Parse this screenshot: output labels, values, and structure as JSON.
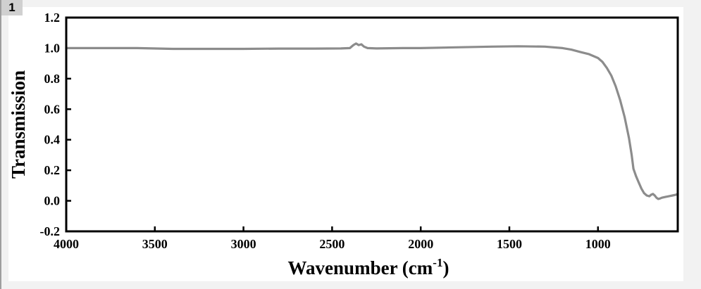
{
  "panel": {
    "label": "1"
  },
  "chart_data": {
    "type": "line",
    "title": "",
    "xlabel": "Wavenumber (cm",
    "xlabel_sup": "-1",
    "xlabel_close": ")",
    "ylabel": "Transmission",
    "xlim": [
      4000,
      550
    ],
    "ylim": [
      -0.2,
      1.2
    ],
    "x_reversed": true,
    "grid": false,
    "line_color": "#8c8c8c",
    "xticks": [
      4000,
      3500,
      3000,
      2500,
      2000,
      1500,
      1000
    ],
    "xtick_labels": [
      "4000",
      "3500",
      "3000",
      "2500",
      "2000",
      "1500",
      "1000"
    ],
    "yticks": [
      -0.2,
      0.0,
      0.2,
      0.4,
      0.6,
      0.8,
      1.0,
      1.2
    ],
    "ytick_labels": [
      "-0.2",
      "0.0",
      "0.2",
      "0.4",
      "0.6",
      "0.8",
      "1.0",
      "1.2"
    ],
    "series": [
      {
        "x": [
          4000,
          3800,
          3600,
          3400,
          3200,
          3000,
          2800,
          2600,
          2450,
          2400,
          2380,
          2365,
          2350,
          2335,
          2320,
          2300,
          2250,
          2100,
          2000,
          1800,
          1600,
          1450,
          1300,
          1200,
          1150,
          1100,
          1050,
          1000,
          975,
          950,
          925,
          900,
          875,
          850,
          825,
          810,
          800,
          785,
          770,
          755,
          740,
          725,
          710,
          700,
          690,
          680,
          670,
          660,
          650,
          640,
          620,
          600,
          580,
          560,
          550
        ],
        "y": [
          1.0,
          1.0,
          1.0,
          0.995,
          0.995,
          0.995,
          0.997,
          0.997,
          0.998,
          1.0,
          1.02,
          1.03,
          1.02,
          1.025,
          1.01,
          1.0,
          0.998,
          1.0,
          1.0,
          1.005,
          1.01,
          1.012,
          1.01,
          1.0,
          0.99,
          0.975,
          0.96,
          0.935,
          0.91,
          0.87,
          0.82,
          0.75,
          0.66,
          0.55,
          0.41,
          0.3,
          0.21,
          0.16,
          0.12,
          0.08,
          0.05,
          0.035,
          0.03,
          0.04,
          0.045,
          0.035,
          0.02,
          0.012,
          0.015,
          0.02,
          0.025,
          0.03,
          0.035,
          0.04,
          0.045
        ]
      }
    ]
  }
}
